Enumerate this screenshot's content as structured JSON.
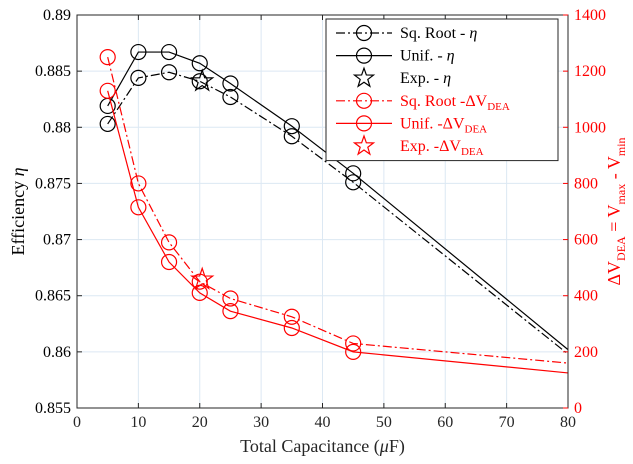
{
  "chart_data": {
    "type": "line",
    "title": "",
    "xlabel": {
      "pre": "Total Capacitance (",
      "greek": "μ",
      "post": "F)"
    },
    "ylabel_left": {
      "pre": "Efficiency ",
      "greek": "η"
    },
    "ylabel_right": {
      "delta": "Δ",
      "v1": "V",
      "sub1": "DEA",
      "eq": " = V",
      "sub2": "max",
      "mid": " - V",
      "sub3": "min"
    },
    "xlim": [
      0,
      80
    ],
    "ylim_left": [
      0.855,
      0.89
    ],
    "ylim_right": [
      0,
      1400
    ],
    "xticks": [
      "0",
      "10",
      "20",
      "30",
      "40",
      "50",
      "60",
      "70",
      "80"
    ],
    "yticks_left": [
      "0.855",
      "0.86",
      "0.865",
      "0.87",
      "0.875",
      "0.88",
      "0.885",
      "0.89"
    ],
    "yticks_right": [
      "0",
      "200",
      "400",
      "600",
      "800",
      "1000",
      "1200",
      "1400"
    ],
    "grid": true,
    "legend_position": "top-right",
    "colors": {
      "left": "#000000",
      "right": "#ff0000",
      "grid": "#dce8f3"
    },
    "series": [
      {
        "name": "Sq. Root - η",
        "axis": "left",
        "style": "dashdot",
        "marker": "circle",
        "x": [
          5,
          10,
          15,
          20,
          25,
          35,
          45,
          80
        ],
        "y": [
          0.8803,
          0.8844,
          0.8849,
          0.8841,
          0.8827,
          0.8792,
          0.8751,
          0.8598
        ],
        "marker_x": [
          5,
          10,
          15,
          20,
          25,
          35,
          45
        ]
      },
      {
        "name": "Unif. - η",
        "axis": "left",
        "style": "solid",
        "marker": "circle",
        "x": [
          5,
          10,
          15,
          20,
          25,
          35,
          45,
          80
        ],
        "y": [
          0.8819,
          0.8867,
          0.8867,
          0.8857,
          0.8839,
          0.8801,
          0.8759,
          0.8602
        ],
        "marker_x": [
          5,
          10,
          15,
          20,
          25,
          35,
          45
        ]
      },
      {
        "name": "Exp. - η",
        "axis": "left",
        "style": "none",
        "marker": "star",
        "x": [
          20.4
        ],
        "y": [
          0.8841
        ]
      },
      {
        "name": "Sq. Root -ΔV",
        "name_sub": "DEA",
        "axis": "right",
        "style": "dashdot",
        "marker": "circle",
        "x": [
          5,
          10,
          15,
          20,
          25,
          35,
          45,
          80
        ],
        "y": [
          1250,
          800,
          590,
          450,
          390,
          325,
          230,
          160
        ],
        "marker_x": [
          5,
          10,
          15,
          20,
          25,
          35,
          45
        ]
      },
      {
        "name": "Unif. -ΔV",
        "name_sub": "DEA",
        "axis": "right",
        "style": "solid",
        "marker": "circle",
        "x": [
          5,
          10,
          15,
          20,
          25,
          35,
          45,
          80
        ],
        "y": [
          1130,
          715,
          520,
          410,
          345,
          285,
          200,
          125
        ],
        "marker_x": [
          5,
          10,
          15,
          20,
          25,
          35,
          45
        ]
      },
      {
        "name": "Exp. -ΔV",
        "name_sub": "DEA",
        "axis": "right",
        "style": "none",
        "marker": "star",
        "x": [
          20.4
        ],
        "y": [
          458
        ]
      }
    ]
  }
}
